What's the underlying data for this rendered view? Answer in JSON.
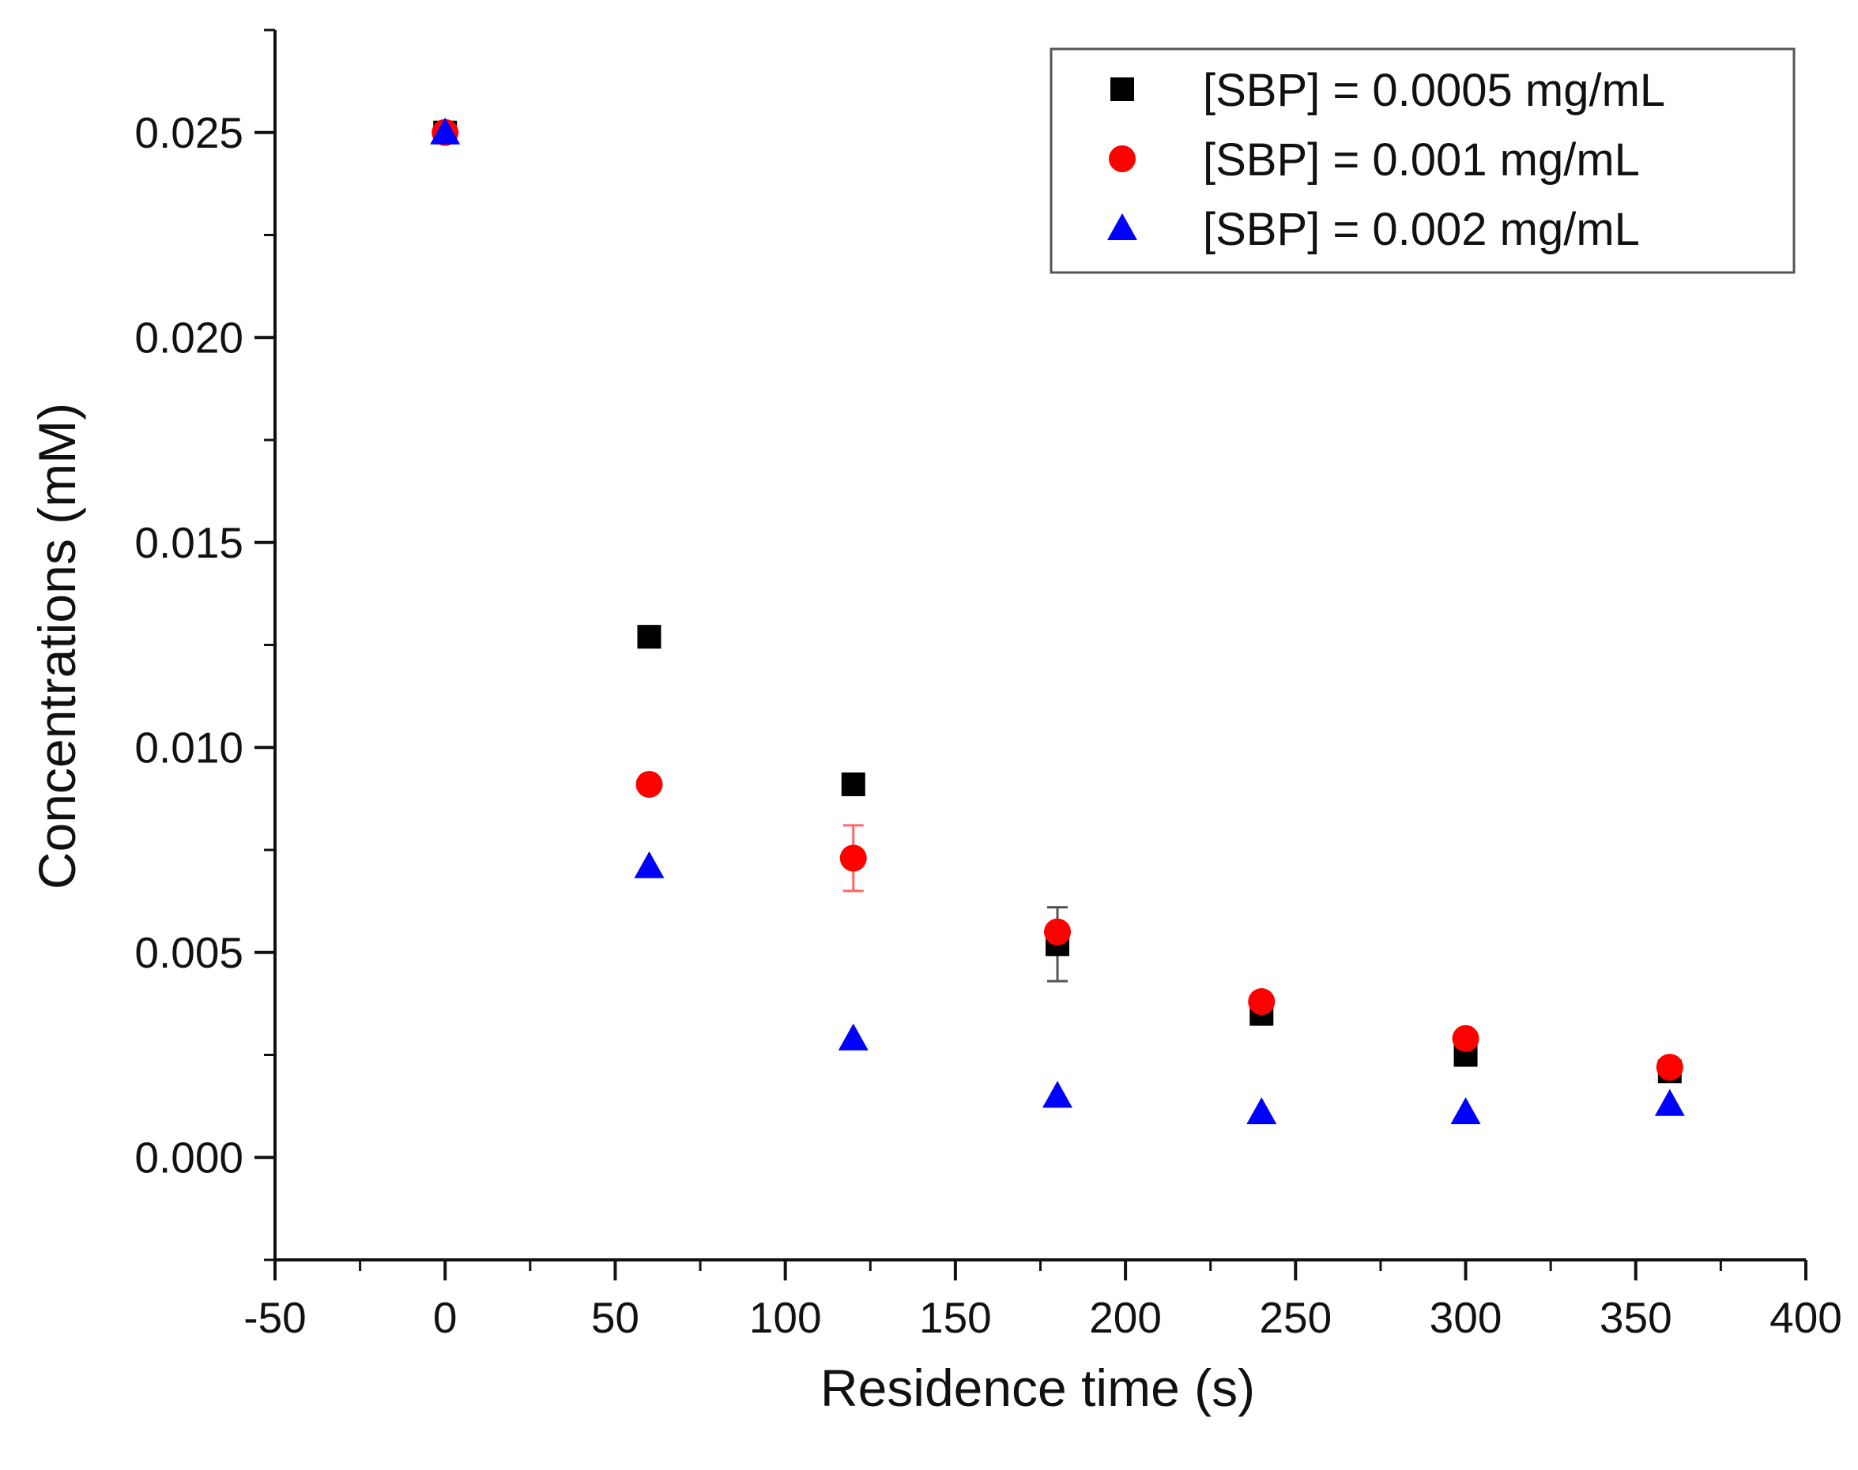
{
  "chart_data": {
    "type": "scatter",
    "title": "",
    "xlabel": "Residence time (s)",
    "ylabel": "Concentrations (mM)",
    "xlim": [
      -50,
      400
    ],
    "ylim": [
      -0.0025,
      0.0275
    ],
    "x_ticks": [
      -50,
      0,
      50,
      100,
      150,
      200,
      250,
      300,
      350,
      400
    ],
    "x_tick_labels": [
      "-50",
      "0",
      "50",
      "100",
      "150",
      "200",
      "250",
      "300",
      "350",
      "400"
    ],
    "y_ticks": [
      0,
      0.005,
      0.01,
      0.015,
      0.02,
      0.025
    ],
    "y_tick_labels": [
      "0.000",
      "0.005",
      "0.010",
      "0.015",
      "0.020",
      "0.025"
    ],
    "grid": false,
    "legend_position": "top-right",
    "x": [
      0,
      60,
      120,
      180,
      240,
      300,
      360
    ],
    "series": [
      {
        "name": "[SBP] = 0.0005 mg/mL",
        "marker": "square",
        "color": "#000000",
        "values": [
          0.025,
          0.0127,
          0.0091,
          0.0052,
          0.0035,
          0.0025,
          0.0021
        ],
        "errors": [
          0,
          0,
          0,
          0.0009,
          0,
          0,
          0
        ]
      },
      {
        "name": "[SBP] = 0.001 mg/mL",
        "marker": "circle",
        "color": "#ff0000",
        "values": [
          0.025,
          0.0091,
          0.0073,
          0.0055,
          0.0038,
          0.0029,
          0.0022
        ],
        "errors": [
          0,
          0,
          0.0008,
          0,
          0,
          0,
          0
        ]
      },
      {
        "name": "[SBP] = 0.002 mg/mL",
        "marker": "triangle",
        "color": "#0000ff",
        "values": [
          0.025,
          0.0071,
          0.0029,
          0.0015,
          0.0011,
          0.0011,
          0.0013
        ],
        "errors": [
          0,
          0,
          0,
          0,
          0,
          0,
          0
        ]
      }
    ]
  }
}
